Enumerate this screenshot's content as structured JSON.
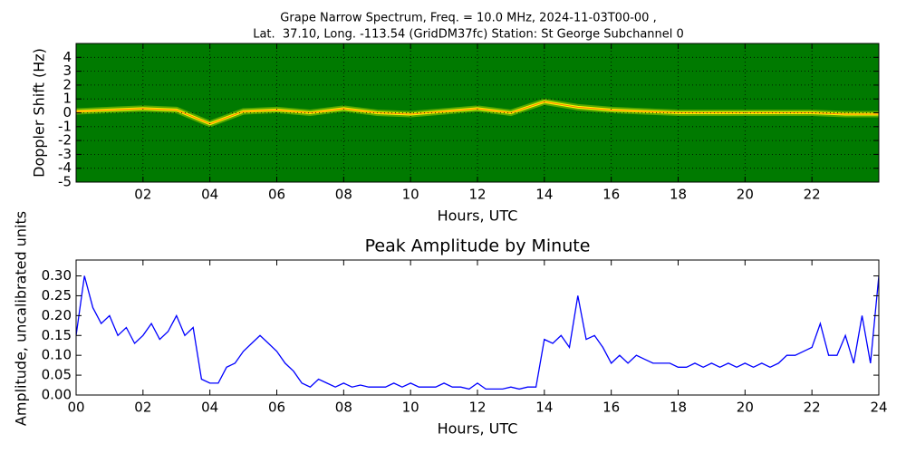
{
  "chart_data": [
    {
      "type": "spectrogram",
      "title": [
        "Grape Narrow Spectrum, Freq. = 10.0 MHz, 2024-11-03T00-00 ,",
        "Lat.  37.10, Long. -113.54 (GridDM37fc) Station: St George Subchannel 0"
      ],
      "x_label": "Hours, UTC",
      "y_label": "Doppler Shift (Hz)",
      "x": [
        0,
        1,
        2,
        3,
        4,
        5,
        6,
        7,
        8,
        9,
        10,
        11,
        12,
        13,
        14,
        15,
        16,
        17,
        18,
        19,
        20,
        21,
        22,
        23,
        24
      ],
      "values": [
        0.1,
        0.2,
        0.3,
        0.2,
        -0.8,
        0.1,
        0.2,
        0.0,
        0.3,
        0.0,
        -0.1,
        0.1,
        0.3,
        0.0,
        0.8,
        0.4,
        0.2,
        0.1,
        0.0,
        0.0,
        0.0,
        0.0,
        0.0,
        -0.1,
        -0.1
      ],
      "color": "#ffff00",
      "background": "#007a00",
      "grid": true,
      "xlim": [
        0,
        24
      ],
      "ylim": [
        -5,
        5
      ],
      "xticks": [
        {
          "value": 2,
          "label": "02"
        },
        {
          "value": 4,
          "label": "04"
        },
        {
          "value": 6,
          "label": "06"
        },
        {
          "value": 8,
          "label": "08"
        },
        {
          "value": 10,
          "label": "10"
        },
        {
          "value": 12,
          "label": "12"
        },
        {
          "value": 14,
          "label": "14"
        },
        {
          "value": 16,
          "label": "16"
        },
        {
          "value": 18,
          "label": "18"
        },
        {
          "value": 20,
          "label": "20"
        },
        {
          "value": 22,
          "label": "22"
        }
      ],
      "yticks": [
        -5,
        -4,
        -3,
        -2,
        -1,
        0,
        1,
        2,
        3,
        4
      ]
    },
    {
      "type": "line",
      "title": "Peak Amplitude by Minute",
      "x_label": "Hours, UTC",
      "y_label": "Amplitude, uncalibrated units",
      "x": [
        0,
        0.25,
        0.5,
        0.75,
        1,
        1.25,
        1.5,
        1.75,
        2,
        2.25,
        2.5,
        2.75,
        3,
        3.25,
        3.5,
        3.75,
        4,
        4.25,
        4.5,
        4.75,
        5,
        5.25,
        5.5,
        5.75,
        6,
        6.25,
        6.5,
        6.75,
        7,
        7.25,
        7.5,
        7.75,
        8,
        8.25,
        8.5,
        8.75,
        9,
        9.25,
        9.5,
        9.75,
        10,
        10.25,
        10.5,
        10.75,
        11,
        11.25,
        11.5,
        11.75,
        12,
        12.25,
        12.5,
        12.75,
        13,
        13.25,
        13.5,
        13.75,
        14,
        14.25,
        14.5,
        14.75,
        15,
        15.25,
        15.5,
        15.75,
        16,
        16.25,
        16.5,
        16.75,
        17,
        17.25,
        17.5,
        17.75,
        18,
        18.25,
        18.5,
        18.75,
        19,
        19.25,
        19.5,
        19.75,
        20,
        20.25,
        20.5,
        20.75,
        21,
        21.25,
        21.5,
        21.75,
        22,
        22.25,
        22.5,
        22.75,
        23,
        23.25,
        23.5,
        23.75,
        24
      ],
      "values": [
        0.15,
        0.3,
        0.22,
        0.18,
        0.2,
        0.15,
        0.17,
        0.13,
        0.15,
        0.18,
        0.14,
        0.16,
        0.2,
        0.15,
        0.17,
        0.04,
        0.03,
        0.03,
        0.07,
        0.08,
        0.11,
        0.13,
        0.15,
        0.13,
        0.11,
        0.08,
        0.06,
        0.03,
        0.02,
        0.04,
        0.03,
        0.02,
        0.03,
        0.02,
        0.025,
        0.02,
        0.02,
        0.02,
        0.03,
        0.02,
        0.03,
        0.02,
        0.02,
        0.02,
        0.03,
        0.02,
        0.02,
        0.015,
        0.03,
        0.015,
        0.015,
        0.015,
        0.02,
        0.015,
        0.02,
        0.02,
        0.14,
        0.13,
        0.15,
        0.12,
        0.25,
        0.14,
        0.15,
        0.12,
        0.08,
        0.1,
        0.08,
        0.1,
        0.09,
        0.08,
        0.08,
        0.08,
        0.07,
        0.07,
        0.08,
        0.07,
        0.08,
        0.07,
        0.08,
        0.07,
        0.08,
        0.07,
        0.08,
        0.07,
        0.08,
        0.1,
        0.1,
        0.11,
        0.12,
        0.18,
        0.1,
        0.1,
        0.15,
        0.08,
        0.2,
        0.08,
        0.3
      ],
      "color": "#0000ff",
      "grid": false,
      "xlim": [
        0,
        24
      ],
      "ylim": [
        0,
        0.34
      ],
      "xticks": [
        {
          "value": 0,
          "label": "00"
        },
        {
          "value": 2,
          "label": "02"
        },
        {
          "value": 4,
          "label": "04"
        },
        {
          "value": 6,
          "label": "06"
        },
        {
          "value": 8,
          "label": "08"
        },
        {
          "value": 10,
          "label": "10"
        },
        {
          "value": 12,
          "label": "12"
        },
        {
          "value": 14,
          "label": "14"
        },
        {
          "value": 16,
          "label": "16"
        },
        {
          "value": 18,
          "label": "18"
        },
        {
          "value": 20,
          "label": "20"
        },
        {
          "value": 22,
          "label": "22"
        },
        {
          "value": 24,
          "label": "24"
        }
      ],
      "yticks": [
        {
          "value": 0,
          "label": "0.00"
        },
        {
          "value": 0.05,
          "label": "0.05"
        },
        {
          "value": 0.1,
          "label": "0.10"
        },
        {
          "value": 0.15,
          "label": "0.15"
        },
        {
          "value": 0.2,
          "label": "0.20"
        },
        {
          "value": 0.25,
          "label": "0.25"
        },
        {
          "value": 0.3,
          "label": "0.30"
        }
      ]
    }
  ]
}
